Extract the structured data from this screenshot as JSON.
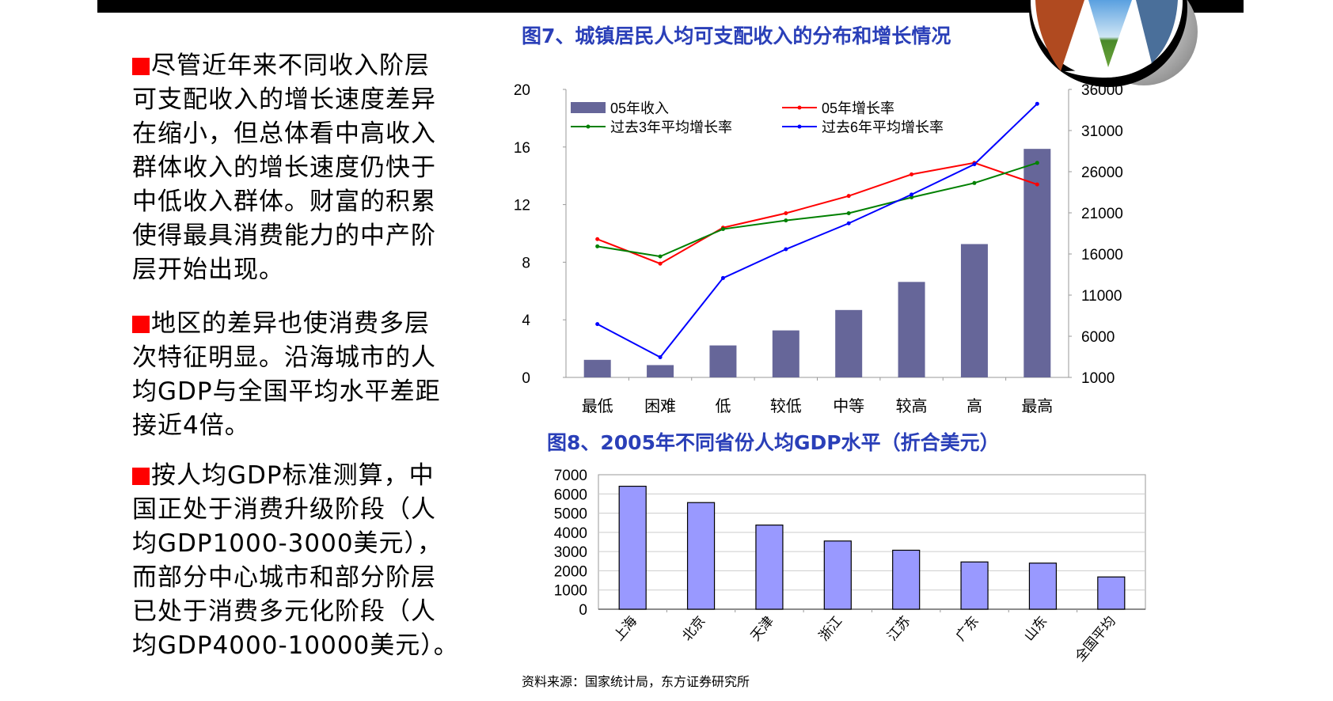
{
  "colors": {
    "accent_bullet": "#ff0000",
    "title_blue": "#2a3fb8",
    "bar1": "#666699",
    "bar2": "#9999ff",
    "red": "#ff0000",
    "green": "#008000",
    "blue": "#0000ff"
  },
  "left_text": {
    "p1": [
      "尽管近年来不同收入阶层",
      "可支配收入的增长速度差异",
      "在缩小，但总体看中高收入",
      "群体收入的增长速度仍快于",
      "中低收入群体。财富的积累",
      "使得最具消费能力的中产阶",
      "层开始出现。"
    ],
    "p2": [
      "地区的差异也使消费多层",
      "次特征明显。沿海城市的人",
      "均GDP与全国平均水平差距",
      "接近4倍。"
    ],
    "p3": [
      "按人均GDP标准测算，中",
      "国正处于消费升级阶段（人",
      "均GDP1000-3000美元），",
      "而部分中心城市和部分阶层",
      "已处于消费多元化阶段（人",
      "均GDP4000-10000美元）。"
    ]
  },
  "source": "资料来源：国家统计局，东方证券研究所",
  "chart_data": [
    {
      "type": "bar+line",
      "title": "图7、城镇居民人均可支配收入的分布和增长情况",
      "categories": [
        "最低",
        "困难",
        "低",
        "较低",
        "中等",
        "较高",
        "高",
        "最高"
      ],
      "left_axis": {
        "ylim": [
          0,
          20
        ],
        "ticks": [
          "0",
          "4",
          "8",
          "12",
          "16",
          "20"
        ]
      },
      "right_axis": {
        "ylim": [
          1000,
          36000
        ],
        "ticks": [
          "1000",
          "6000",
          "11000",
          "16000",
          "21000",
          "26000",
          "31000",
          "36000"
        ]
      },
      "bar_series": {
        "name": "05年收入",
        "axis": "right",
        "values": [
          3135,
          2496,
          4885,
          6711,
          9190,
          12603,
          17203,
          28773
        ]
      },
      "line_series": [
        {
          "name": "05年增长率",
          "axis": "left",
          "color": "#ff0000",
          "values": [
            9.6,
            7.9,
            10.4,
            11.4,
            12.6,
            14.1,
            14.9,
            13.4
          ]
        },
        {
          "name": "过去3年平均增长率",
          "axis": "left",
          "color": "#008000",
          "values": [
            9.1,
            8.4,
            10.3,
            10.9,
            11.4,
            12.5,
            13.5,
            14.9
          ]
        },
        {
          "name": "过去6年平均增长率",
          "axis": "left",
          "color": "#0000ff",
          "values": [
            3.7,
            1.4,
            6.9,
            8.9,
            10.7,
            12.7,
            14.8,
            19.0
          ]
        }
      ],
      "legend": "top-left"
    },
    {
      "type": "bar",
      "title": "图8、2005年不同省份人均GDP水平（折合美元）",
      "categories": [
        "上海",
        "北京",
        "天津",
        "浙江",
        "江苏",
        "广东",
        "山东",
        "全国平均"
      ],
      "values": [
        6400,
        5550,
        4380,
        3550,
        3070,
        2460,
        2400,
        1680
      ],
      "ylim": [
        0,
        7000
      ],
      "ticks": [
        "0",
        "1000",
        "2000",
        "3000",
        "4000",
        "5000",
        "6000",
        "7000"
      ],
      "grid": true
    }
  ]
}
